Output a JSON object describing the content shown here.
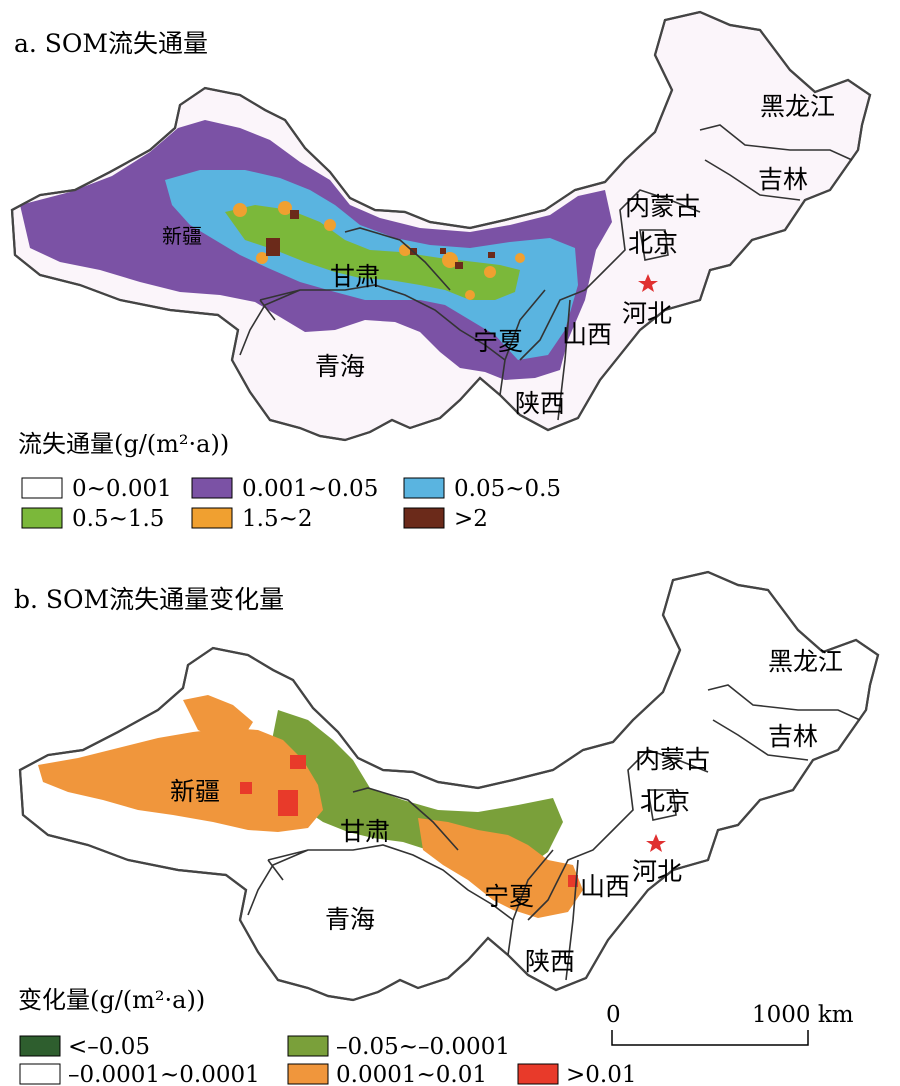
{
  "panels": [
    {
      "id": "a",
      "title": "a. SOM流失通量",
      "legend_title": "流失通量(g/(m²·a))",
      "legend": [
        {
          "label": "0~0.001",
          "color": "#ffffff"
        },
        {
          "label": "0.001~0.05",
          "color": "#7b52a5"
        },
        {
          "label": "0.05~0.5",
          "color": "#5ab4e0"
        },
        {
          "label": "0.5~1.5",
          "color": "#7bb83a"
        },
        {
          "label": "1.5~2",
          "color": "#f0a030"
        },
        {
          "label": ">2",
          "color": "#6b2a1a"
        }
      ],
      "places": [
        "黑龙江",
        "吉林",
        "内蒙古",
        "北京",
        "新疆",
        "甘肃",
        "河北",
        "宁夏",
        "山西",
        "青海",
        "陕西"
      ]
    },
    {
      "id": "b",
      "title": "b. SOM流失通量变化量",
      "legend_title": "变化量(g/(m²·a))",
      "legend": [
        {
          "label": "<–0.05",
          "color": "#2e5e2e"
        },
        {
          "label": "–0.05~–0.0001",
          "color": "#7aa03a"
        },
        {
          "label": "–0.0001~0.0001",
          "color": "#ffffff"
        },
        {
          "label": "0.0001~0.01",
          "color": "#f0963c"
        },
        {
          "label": ">0.01",
          "color": "#e83a2a"
        }
      ],
      "places": [
        "黑龙江",
        "吉林",
        "内蒙古",
        "北京",
        "新疆",
        "甘肃",
        "河北",
        "宁夏",
        "山西",
        "青海",
        "陕西"
      ]
    }
  ],
  "scale_bar": {
    "start": "0",
    "end": "1000 km"
  },
  "capital_marker_color": "#e03030",
  "outline_color": "#444444"
}
